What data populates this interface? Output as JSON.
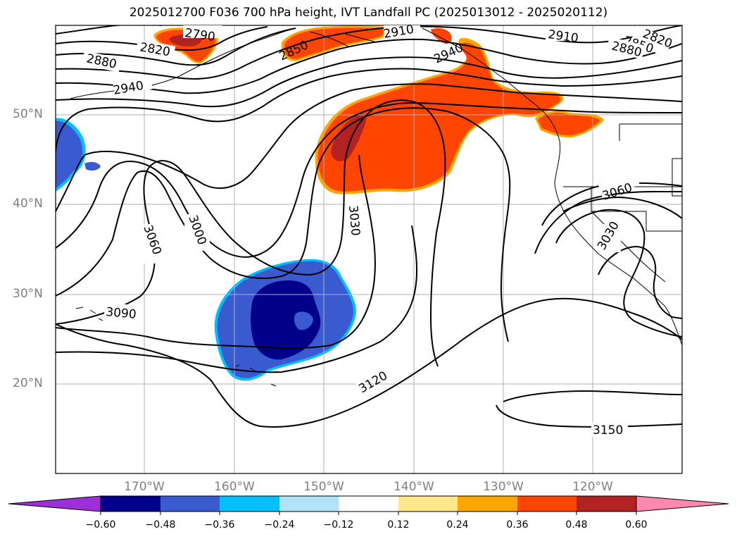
{
  "title": "2025012700 F036 700 hPa height, IVT Landfall PC (2025013012 - 2025020112)",
  "latitude_labels": [
    {
      "label": "50°N",
      "lat": 50
    },
    {
      "label": "40°N",
      "lat": 40
    },
    {
      "label": "30°N",
      "lat": 30
    },
    {
      "label": "20°N",
      "lat": 20
    }
  ],
  "longitude_labels": [
    {
      "label": "170°W",
      "lon": -170
    },
    {
      "label": "160°W",
      "lon": -160
    },
    {
      "label": "150°W",
      "lon": -150
    },
    {
      "label": "140°W",
      "lon": -140
    },
    {
      "label": "130°W",
      "lon": -130
    },
    {
      "label": "120°W",
      "lon": -120
    }
  ],
  "contour_labels": [
    "2790",
    "2820",
    "2850",
    "2880",
    "2910",
    "2940",
    "3000",
    "3030",
    "3060",
    "3090",
    "3120",
    "3150",
    "2820",
    "2850",
    "2880",
    "2910",
    "2940",
    "3030",
    "3060",
    "3060",
    "3030"
  ],
  "colorbar": {
    "ticks": [
      "−0.60",
      "−0.48",
      "−0.36",
      "−0.24",
      "−0.12",
      "0.12",
      "0.24",
      "0.36",
      "0.48",
      "0.60"
    ],
    "colors": [
      "#9b30d9",
      "#00008b",
      "#3a5bd0",
      "#00bfff",
      "#b0e2fa",
      "#ffffff",
      "#ffe88a",
      "#ffa500",
      "#ff4500",
      "#b22222",
      "#ff88b0"
    ]
  },
  "anomaly_colors": {
    "positive_high": "#b22222",
    "positive": "#ff4500",
    "positive_low": "#ffa500",
    "negative_edge": "#00bfff",
    "negative": "#3a5bd0",
    "negative_high": "#00008b"
  }
}
